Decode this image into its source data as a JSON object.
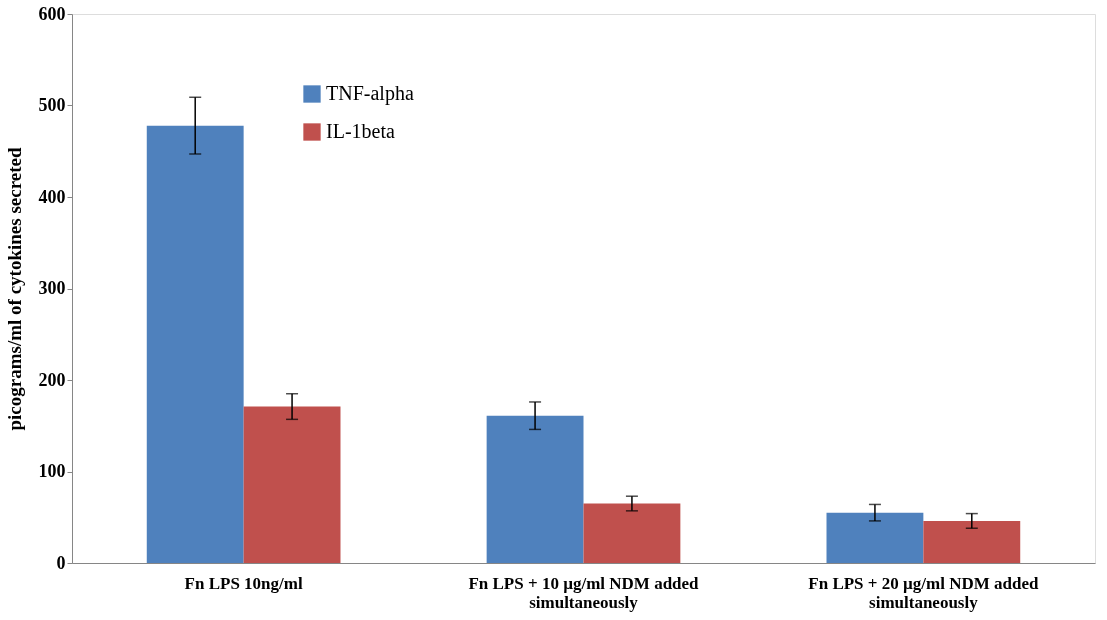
{
  "chart_data": {
    "type": "bar",
    "ylabel": "picograms/ml of cytokines secreted",
    "categories": [
      "Fn LPS 10ng/ml",
      "Fn LPS + 10 µg/ml NDM added\nsimultaneously",
      "Fn LPS + 20 µg/ml NDM added\nsimultaneously"
    ],
    "series": [
      {
        "name": "TNF-alpha",
        "color": "#4f81bd",
        "values": [
          478,
          161,
          55
        ],
        "errors": [
          31,
          15,
          9
        ]
      },
      {
        "name": "IL-1beta",
        "color": "#c0504d",
        "values": [
          171,
          65,
          46
        ],
        "errors": [
          14,
          8,
          8
        ]
      }
    ],
    "ylim": [
      0,
      600
    ],
    "yticks": [
      0,
      100,
      200,
      300,
      400,
      500,
      600
    ],
    "grid": false,
    "legend": "top left"
  }
}
